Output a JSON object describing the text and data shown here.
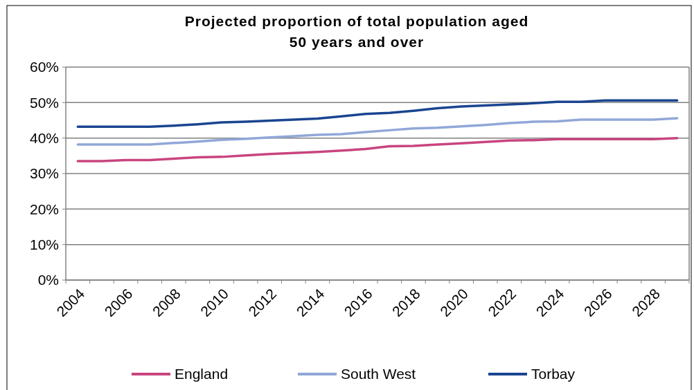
{
  "chart_data": {
    "type": "line",
    "title": "Projected proportion of total population aged\n50 years and over",
    "categories": [
      "2004",
      null,
      "2006",
      null,
      "2008",
      null,
      "2010",
      null,
      "2012",
      null,
      "2014",
      null,
      "2016",
      null,
      "2018",
      null,
      "2020",
      null,
      "2022",
      null,
      "2024",
      null,
      "2026",
      null,
      "2028",
      null
    ],
    "series": [
      {
        "name": "England",
        "color": "#c8457f",
        "values": [
          33.5,
          33.5,
          33.8,
          33.8,
          34.2,
          34.6,
          34.7,
          35.1,
          35.5,
          35.8,
          36.1,
          36.5,
          36.9,
          37.7,
          37.8,
          38.2,
          38.5,
          38.9,
          39.3,
          39.4,
          39.7,
          39.7,
          39.7,
          39.7,
          39.7,
          40.0
        ]
      },
      {
        "name": "South West",
        "color": "#91a7d8",
        "values": [
          38.2,
          38.2,
          38.2,
          38.2,
          38.6,
          39.0,
          39.5,
          39.8,
          40.2,
          40.5,
          40.9,
          41.1,
          41.7,
          42.2,
          42.7,
          42.9,
          43.3,
          43.7,
          44.2,
          44.6,
          44.7,
          45.2,
          45.2,
          45.2,
          45.2,
          45.6
        ]
      },
      {
        "name": "Torbay",
        "color": "#1a4590",
        "values": [
          43.2,
          43.2,
          43.2,
          43.2,
          43.5,
          43.9,
          44.4,
          44.6,
          44.9,
          45.2,
          45.5,
          46.1,
          46.8,
          47.1,
          47.7,
          48.4,
          48.9,
          49.2,
          49.5,
          49.8,
          50.2,
          50.2,
          50.6,
          50.6,
          50.6,
          50.6
        ]
      }
    ],
    "ylim": [
      0,
      60
    ],
    "yticks": [
      {
        "value": 0,
        "label": "0%"
      },
      {
        "value": 10,
        "label": "10%"
      },
      {
        "value": 20,
        "label": "20%"
      },
      {
        "value": 30,
        "label": "30%"
      },
      {
        "value": 40,
        "label": "40%"
      },
      {
        "value": 50,
        "label": "50%"
      },
      {
        "value": 60,
        "label": "60%"
      }
    ],
    "grid": "y",
    "legend": "bottom",
    "line_style": "solid"
  }
}
